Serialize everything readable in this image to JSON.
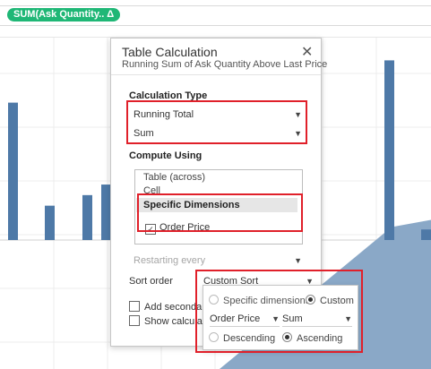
{
  "shelf": {
    "pill_label": "SUM(Ask Quantity.. Δ"
  },
  "colors": {
    "pill": "#1fb776",
    "bars": "#4e79a7",
    "area": "#8aa8c7",
    "annotation": "#e0202a"
  },
  "chart_data": {
    "type": "bar",
    "series": [
      {
        "values": [
          0.52,
          0.13,
          0.17,
          0.21,
          0.68,
          0.04
        ]
      }
    ],
    "background_area": {
      "type": "area",
      "values": [
        0.0,
        0.45
      ]
    }
  },
  "dialog": {
    "title": "Table Calculation",
    "subtitle": "Running Sum of Ask Quantity Above Last Price",
    "close_icon": "close-icon",
    "calculation_type": {
      "label": "Calculation Type",
      "type_value": "Running Total",
      "agg_value": "Sum"
    },
    "compute_using": {
      "label": "Compute Using",
      "options": [
        "Table (across)",
        "Cell",
        "Specific Dimensions"
      ],
      "selected": "Specific Dimensions",
      "dimension_label": "Order Price",
      "dimension_checked": true
    },
    "restarting_every": "Restarting every",
    "sort_order": {
      "label": "Sort order",
      "value": "Custom Sort"
    },
    "add_secondary": "Add secondary",
    "show_calculation": "Show calculatio"
  },
  "sort_popover": {
    "specific_dimensions": "Specific dimensions",
    "custom": "Custom",
    "field": "Order Price",
    "aggregation": "Sum",
    "descending": "Descending",
    "ascending": "Ascending"
  }
}
